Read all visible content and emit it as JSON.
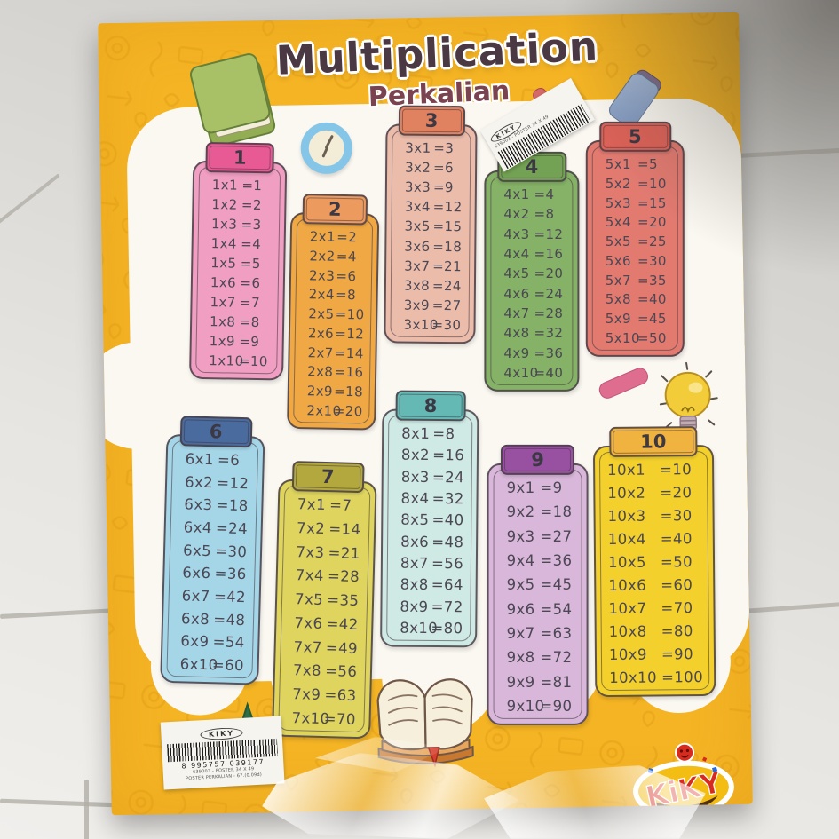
{
  "poster": {
    "title": "Multiplication",
    "subtitle": "Perkalian",
    "logo_text": "KiKY",
    "colors": {
      "poster_yellow": "#f4b424",
      "doodle_orange": "#e09a12",
      "paper_white": "#fbf8f2",
      "title_color": "#4a3842",
      "subtitle_color": "#7b4350",
      "row_text_color": "#4b4753"
    },
    "tables": [
      {
        "number": "1",
        "header_color": "#e85a94",
        "body_color": "#f09ec2",
        "rows": [
          [
            "1x1",
            "=1"
          ],
          [
            "1x2",
            "=2"
          ],
          [
            "1x3",
            "=3"
          ],
          [
            "1x4",
            "=4"
          ],
          [
            "1x5",
            "=5"
          ],
          [
            "1x6",
            "=6"
          ],
          [
            "1x7",
            "=7"
          ],
          [
            "1x8",
            "=8"
          ],
          [
            "1x9",
            "=9"
          ],
          [
            "1x10",
            "=10"
          ]
        ]
      },
      {
        "number": "2",
        "header_color": "#ec9a5e",
        "body_color": "#f0a844",
        "rows": [
          [
            "2x1",
            "=2"
          ],
          [
            "2x2",
            "=4"
          ],
          [
            "2x3",
            "=6"
          ],
          [
            "2x4",
            "=8"
          ],
          [
            "2x5",
            "=10"
          ],
          [
            "2x6",
            "=12"
          ],
          [
            "2x7",
            "=14"
          ],
          [
            "2x8",
            "=16"
          ],
          [
            "2x9",
            "=18"
          ],
          [
            "2x10",
            "=20"
          ]
        ]
      },
      {
        "number": "3",
        "header_color": "#e0815f",
        "body_color": "#ecbcab",
        "rows": [
          [
            "3x1",
            "=3"
          ],
          [
            "3x2",
            "=6"
          ],
          [
            "3x3",
            "=9"
          ],
          [
            "3x4",
            "=12"
          ],
          [
            "3x5",
            "=15"
          ],
          [
            "3x6",
            "=18"
          ],
          [
            "3x7",
            "=21"
          ],
          [
            "3x8",
            "=24"
          ],
          [
            "3x9",
            "=27"
          ],
          [
            "3x10",
            "=30"
          ]
        ]
      },
      {
        "number": "4",
        "header_color": "#74a254",
        "body_color": "#85b266",
        "rows": [
          [
            "4x1",
            "=4"
          ],
          [
            "4x2",
            "=8"
          ],
          [
            "4x3",
            "=12"
          ],
          [
            "4x4",
            "=16"
          ],
          [
            "4x5",
            "=20"
          ],
          [
            "4x6",
            "=24"
          ],
          [
            "4x7",
            "=28"
          ],
          [
            "4x8",
            "=32"
          ],
          [
            "4x9",
            "=36"
          ],
          [
            "4x10",
            "=40"
          ]
        ]
      },
      {
        "number": "5",
        "header_color": "#dc6258",
        "body_color": "#e27a70",
        "rows": [
          [
            "5x1",
            "=5"
          ],
          [
            "5x2",
            "=10"
          ],
          [
            "5x3",
            "=15"
          ],
          [
            "5x4",
            "=20"
          ],
          [
            "5x5",
            "=25"
          ],
          [
            "5x6",
            "=30"
          ],
          [
            "5x7",
            "=35"
          ],
          [
            "5x8",
            "=40"
          ],
          [
            "5x9",
            "=45"
          ],
          [
            "5x10",
            "=50"
          ]
        ]
      },
      {
        "number": "6",
        "header_color": "#4a6b9d",
        "body_color": "#a5d6e8",
        "rows": [
          [
            "6x1",
            "=6"
          ],
          [
            "6x2",
            "=12"
          ],
          [
            "6x3",
            "=18"
          ],
          [
            "6x4",
            "=24"
          ],
          [
            "6x5",
            "=30"
          ],
          [
            "6x6",
            "=36"
          ],
          [
            "6x7",
            "=42"
          ],
          [
            "6x8",
            "=48"
          ],
          [
            "6x9",
            "=54"
          ],
          [
            "6x10",
            "=60"
          ]
        ]
      },
      {
        "number": "7",
        "header_color": "#b3a83e",
        "body_color": "#ded45e",
        "rows": [
          [
            "7x1",
            "=7"
          ],
          [
            "7x2",
            "=14"
          ],
          [
            "7x3",
            "=21"
          ],
          [
            "7x4",
            "=28"
          ],
          [
            "7x5",
            "=35"
          ],
          [
            "7x6",
            "=42"
          ],
          [
            "7x7",
            "=49"
          ],
          [
            "7x8",
            "=56"
          ],
          [
            "7x9",
            "=63"
          ],
          [
            "7x10",
            "=70"
          ]
        ]
      },
      {
        "number": "8",
        "header_color": "#64b9b4",
        "body_color": "#cfe9e4",
        "rows": [
          [
            "8x1",
            "=8"
          ],
          [
            "8x2",
            "=16"
          ],
          [
            "8x3",
            "=24"
          ],
          [
            "8x4",
            "=32"
          ],
          [
            "8x5",
            "=40"
          ],
          [
            "8x6",
            "=48"
          ],
          [
            "8x7",
            "=56"
          ],
          [
            "8x8",
            "=64"
          ],
          [
            "8x9",
            "=72"
          ],
          [
            "8x10",
            "=80"
          ]
        ]
      },
      {
        "number": "9",
        "header_color": "#9851a0",
        "body_color": "#d9b7da",
        "rows": [
          [
            "9x1",
            "=9"
          ],
          [
            "9x2",
            "=18"
          ],
          [
            "9x3",
            "=27"
          ],
          [
            "9x4",
            "=36"
          ],
          [
            "9x5",
            "=45"
          ],
          [
            "9x6",
            "=54"
          ],
          [
            "9x7",
            "=63"
          ],
          [
            "9x8",
            "=72"
          ],
          [
            "9x9",
            "=81"
          ],
          [
            "9x10",
            "=90"
          ]
        ]
      },
      {
        "number": "10",
        "header_color": "#f0b340",
        "body_color": "#f3d02c",
        "rows": [
          [
            "10x1",
            "=10"
          ],
          [
            "10x2",
            "=20"
          ],
          [
            "10x3",
            "=30"
          ],
          [
            "10x4",
            "=40"
          ],
          [
            "10x5",
            "=50"
          ],
          [
            "10x6",
            "=60"
          ],
          [
            "10x7",
            "=70"
          ],
          [
            "10x8",
            "=80"
          ],
          [
            "10x9",
            "=90"
          ],
          [
            "10x10",
            "=100"
          ]
        ]
      }
    ],
    "sticker_top": {
      "brand": "KIKY",
      "line1": "639003 - POSTER 34 X 49"
    },
    "sticker_bottom": {
      "brand": "KIKY",
      "barcode_number": "8 995757 039177",
      "line1": "639003 - POSTER 34 X 49",
      "line2": "POSTER PERKALIAN - 67.(0.09d)"
    }
  }
}
